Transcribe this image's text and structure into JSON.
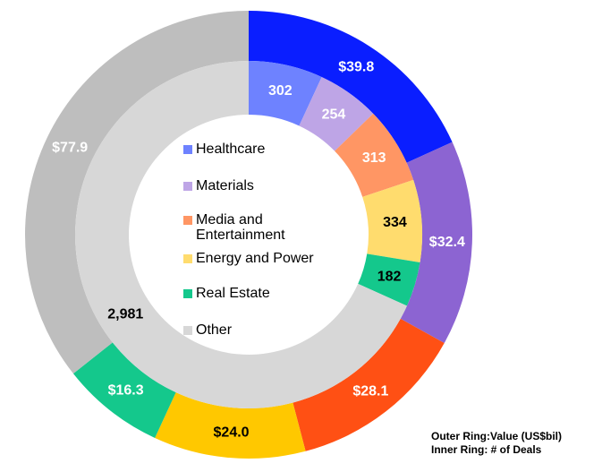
{
  "chart_data": {
    "type": "donut",
    "categories": [
      "Healthcare",
      "Materials",
      "Media and Entertainment",
      "Energy and Power",
      "Real Estate",
      "Other"
    ],
    "series": [
      {
        "ring": "outer",
        "values": [
          39.8,
          32.4,
          28.1,
          24.0,
          16.3,
          77.9
        ],
        "value_labels": [
          "$39.8",
          "$32.4",
          "$28.1",
          "$24.0",
          "$16.3",
          "$77.9"
        ],
        "colors": [
          "#0a1eff",
          "#8c64d2",
          "#ff5014",
          "#ffc800",
          "#14c88c",
          "#bebebe"
        ],
        "label_colors": [
          "#ffffff",
          "#ffffff",
          "#ffffff",
          "#000000",
          "#ffffff",
          "#ffffff"
        ]
      },
      {
        "ring": "inner",
        "values": [
          302,
          254,
          313,
          334,
          182,
          2981
        ],
        "value_labels": [
          "302",
          "254",
          "313",
          "334",
          "182",
          "2,981"
        ],
        "colors": [
          "#6e82ff",
          "#bea5e6",
          "#ff9664",
          "#ffdc6e",
          "#14c88c",
          "#d7d7d7"
        ],
        "label_colors": [
          "#ffffff",
          "#ffffff",
          "#ffffff",
          "#000000",
          "#000000",
          "#000000"
        ]
      }
    ],
    "annotations": [
      "Outer Ring:Value (US$bil)",
      "Inner Ring: # of Deals"
    ]
  }
}
